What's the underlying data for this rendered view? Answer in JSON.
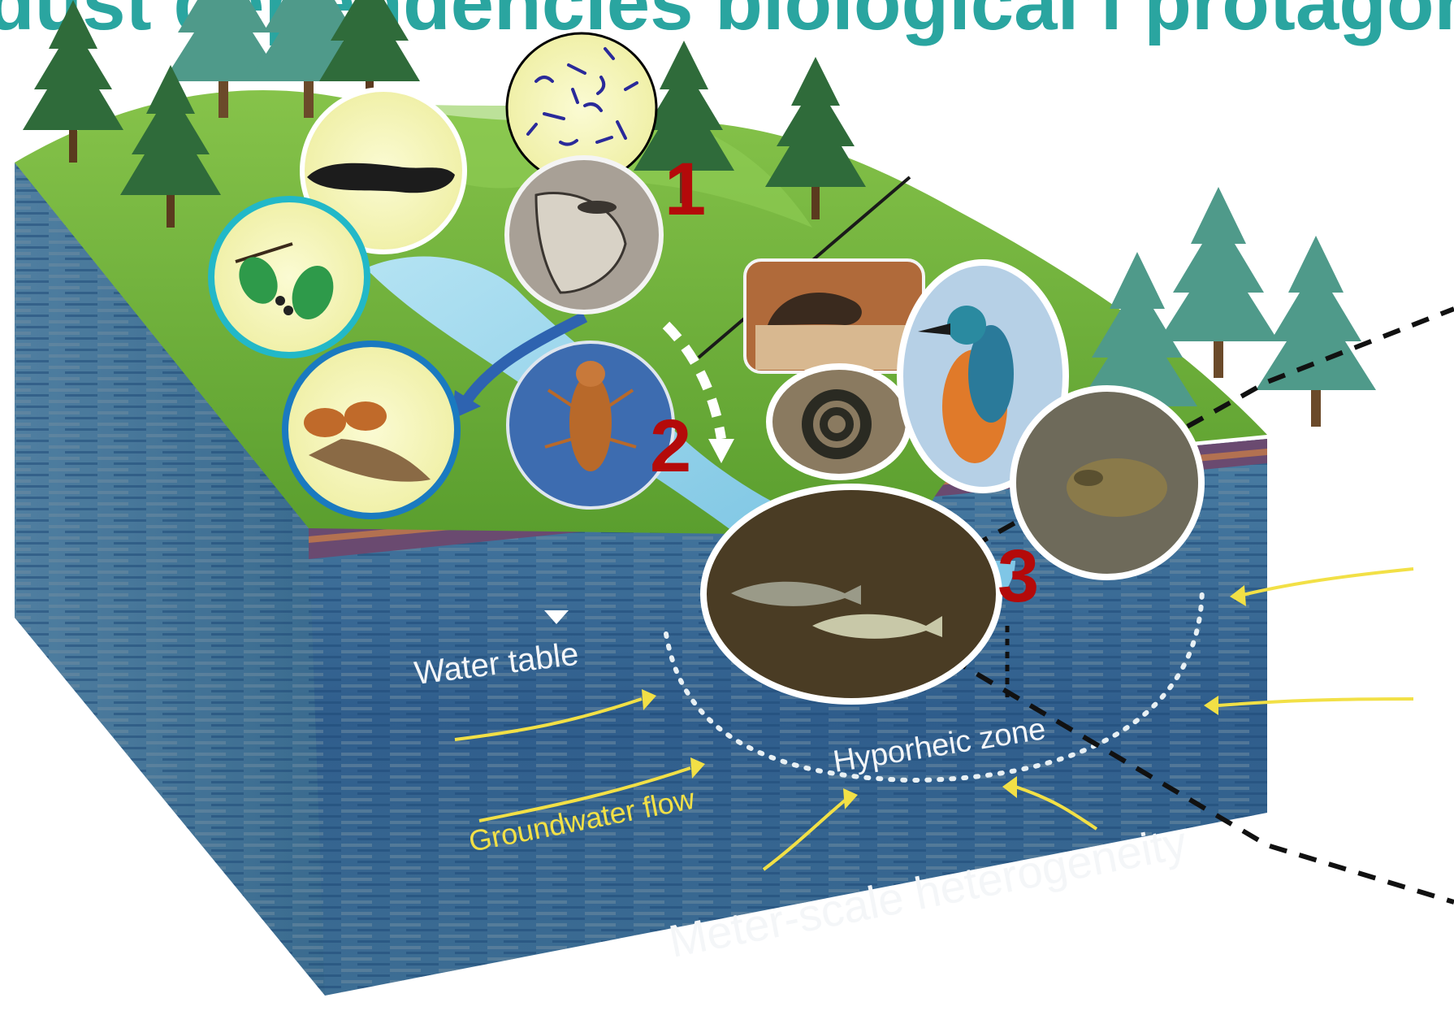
{
  "title": "dust dependencies biological i protagonists",
  "markers": [
    "1",
    "2",
    "3"
  ],
  "labels": {
    "water_table": "Water table",
    "hyporheic_zone": "Hyporheic zone",
    "groundwater_flow": "Groundwater flow",
    "heterogeneity": "Meter-scale heterogeneity"
  },
  "colors": {
    "title": "#2aa5a0",
    "marker": "#b40a0a",
    "flow_arrow": "#f2e046",
    "river": "#8fd0ea",
    "grass": "#6fb43a",
    "groundwater": "#2f5d8c"
  },
  "pictures": [
    "bacteria-icon",
    "ciliate-icon",
    "caddis-larva-icon",
    "alder-leaves-icon",
    "caddis-case-icon",
    "stonefly-nymph-icon",
    "otter-icon",
    "kingfisher-icon",
    "grass-snake-icon",
    "toad-icon",
    "fish-icon",
    "conifer-tree-icon"
  ]
}
